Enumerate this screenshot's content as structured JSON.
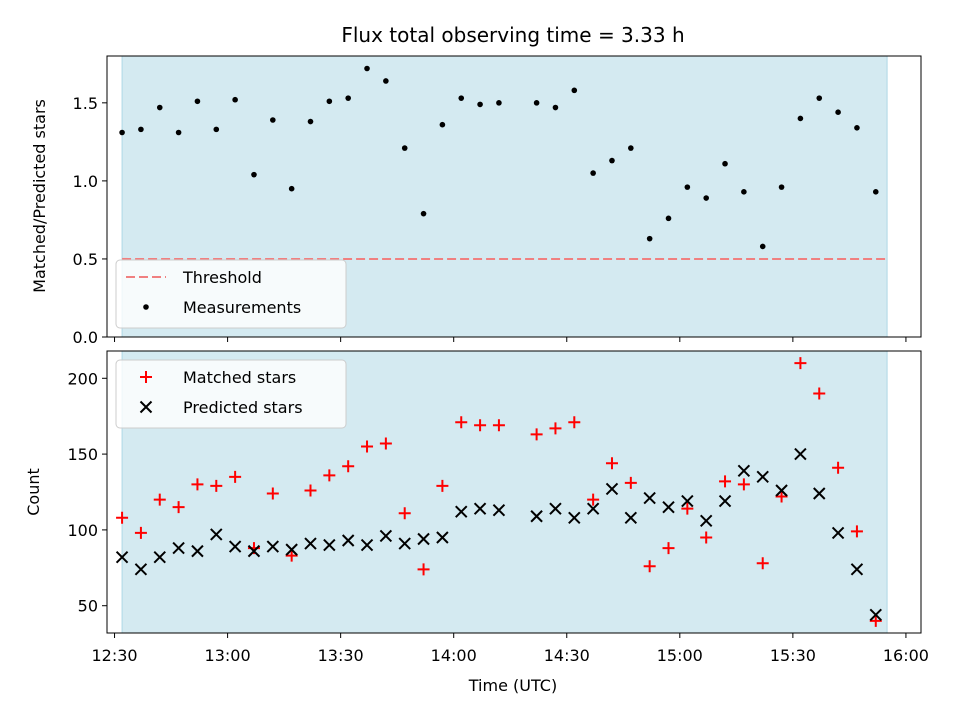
{
  "figure": {
    "title": "Flux total observing time = 3.33 h",
    "xlabel": "Time (UTC)",
    "x_ticks": [
      "12:30",
      "13:00",
      "13:30",
      "14:00",
      "14:30",
      "15:00",
      "15:30",
      "16:00"
    ],
    "colors": {
      "shade": "#d4eaf1",
      "shade_edge": "#add8e6",
      "threshold": "#f08080",
      "measurement": "#000000",
      "matched": "#ff0000",
      "predicted": "#000000"
    }
  },
  "chart_data": [
    {
      "type": "scatter",
      "ylabel": "Matched/Predicted stars",
      "ylim": [
        0,
        1.8
      ],
      "xlim": [
        "12:28",
        "16:04"
      ],
      "y_ticks": [
        "0.0",
        "0.5",
        "1.0",
        "1.5"
      ],
      "shaded_span": [
        "12:32",
        "15:55"
      ],
      "legend_position": "lower-left",
      "threshold": {
        "name": "Threshold",
        "value": 0.5
      },
      "series": [
        {
          "name": "Measurements",
          "points": [
            [
              "12:32",
              1.31
            ],
            [
              "12:37",
              1.33
            ],
            [
              "12:42",
              1.47
            ],
            [
              "12:47",
              1.31
            ],
            [
              "12:52",
              1.51
            ],
            [
              "12:57",
              1.33
            ],
            [
              "13:02",
              1.52
            ],
            [
              "13:07",
              1.04
            ],
            [
              "13:12",
              1.39
            ],
            [
              "13:17",
              0.95
            ],
            [
              "13:22",
              1.38
            ],
            [
              "13:27",
              1.51
            ],
            [
              "13:32",
              1.53
            ],
            [
              "13:37",
              1.72
            ],
            [
              "13:42",
              1.64
            ],
            [
              "13:47",
              1.21
            ],
            [
              "13:52",
              0.79
            ],
            [
              "13:57",
              1.36
            ],
            [
              "14:02",
              1.53
            ],
            [
              "14:07",
              1.49
            ],
            [
              "14:12",
              1.5
            ],
            [
              "14:22",
              1.5
            ],
            [
              "14:27",
              1.47
            ],
            [
              "14:32",
              1.58
            ],
            [
              "14:37",
              1.05
            ],
            [
              "14:42",
              1.13
            ],
            [
              "14:47",
              1.21
            ],
            [
              "14:52",
              0.63
            ],
            [
              "14:57",
              0.76
            ],
            [
              "15:02",
              0.96
            ],
            [
              "15:07",
              0.89
            ],
            [
              "15:12",
              1.11
            ],
            [
              "15:17",
              0.93
            ],
            [
              "15:22",
              0.58
            ],
            [
              "15:27",
              0.96
            ],
            [
              "15:32",
              1.4
            ],
            [
              "15:37",
              1.53
            ],
            [
              "15:42",
              1.44
            ],
            [
              "15:47",
              1.34
            ],
            [
              "15:52",
              0.93
            ]
          ]
        }
      ]
    },
    {
      "type": "scatter",
      "ylabel": "Count",
      "ylim": [
        32,
        218
      ],
      "xlim": [
        "12:28",
        "16:04"
      ],
      "y_ticks": [
        "50",
        "100",
        "150",
        "200"
      ],
      "shaded_span": [
        "12:32",
        "15:55"
      ],
      "legend_position": "upper-left",
      "series": [
        {
          "name": "Matched stars",
          "marker": "plus",
          "points": [
            [
              "12:32",
              108
            ],
            [
              "12:37",
              98
            ],
            [
              "12:42",
              120
            ],
            [
              "12:47",
              115
            ],
            [
              "12:52",
              130
            ],
            [
              "12:57",
              129
            ],
            [
              "13:02",
              135
            ],
            [
              "13:07",
              88
            ],
            [
              "13:12",
              124
            ],
            [
              "13:17",
              83
            ],
            [
              "13:22",
              126
            ],
            [
              "13:27",
              136
            ],
            [
              "13:32",
              142
            ],
            [
              "13:37",
              155
            ],
            [
              "13:42",
              157
            ],
            [
              "13:47",
              111
            ],
            [
              "13:52",
              74
            ],
            [
              "13:57",
              129
            ],
            [
              "14:02",
              171
            ],
            [
              "14:07",
              169
            ],
            [
              "14:12",
              169
            ],
            [
              "14:22",
              163
            ],
            [
              "14:27",
              167
            ],
            [
              "14:32",
              171
            ],
            [
              "14:37",
              120
            ],
            [
              "14:42",
              144
            ],
            [
              "14:47",
              131
            ],
            [
              "14:52",
              76
            ],
            [
              "14:57",
              88
            ],
            [
              "15:02",
              114
            ],
            [
              "15:07",
              95
            ],
            [
              "15:12",
              132
            ],
            [
              "15:17",
              130
            ],
            [
              "15:22",
              78
            ],
            [
              "15:27",
              122
            ],
            [
              "15:32",
              210
            ],
            [
              "15:37",
              190
            ],
            [
              "15:42",
              141
            ],
            [
              "15:47",
              99
            ],
            [
              "15:52",
              40
            ]
          ]
        },
        {
          "name": "Predicted stars",
          "marker": "x",
          "points": [
            [
              "12:32",
              82
            ],
            [
              "12:37",
              74
            ],
            [
              "12:42",
              82
            ],
            [
              "12:47",
              88
            ],
            [
              "12:52",
              86
            ],
            [
              "12:57",
              97
            ],
            [
              "13:02",
              89
            ],
            [
              "13:07",
              86
            ],
            [
              "13:12",
              89
            ],
            [
              "13:17",
              87
            ],
            [
              "13:22",
              91
            ],
            [
              "13:27",
              90
            ],
            [
              "13:32",
              93
            ],
            [
              "13:37",
              90
            ],
            [
              "13:42",
              96
            ],
            [
              "13:47",
              91
            ],
            [
              "13:52",
              94
            ],
            [
              "13:57",
              95
            ],
            [
              "14:02",
              112
            ],
            [
              "14:07",
              114
            ],
            [
              "14:12",
              113
            ],
            [
              "14:22",
              109
            ],
            [
              "14:27",
              114
            ],
            [
              "14:32",
              108
            ],
            [
              "14:37",
              114
            ],
            [
              "14:42",
              127
            ],
            [
              "14:47",
              108
            ],
            [
              "14:52",
              121
            ],
            [
              "14:57",
              115
            ],
            [
              "15:02",
              119
            ],
            [
              "15:07",
              106
            ],
            [
              "15:12",
              119
            ],
            [
              "15:17",
              139
            ],
            [
              "15:22",
              135
            ],
            [
              "15:27",
              126
            ],
            [
              "15:32",
              150
            ],
            [
              "15:37",
              124
            ],
            [
              "15:42",
              98
            ],
            [
              "15:47",
              74
            ],
            [
              "15:52",
              44
            ]
          ]
        }
      ]
    }
  ]
}
